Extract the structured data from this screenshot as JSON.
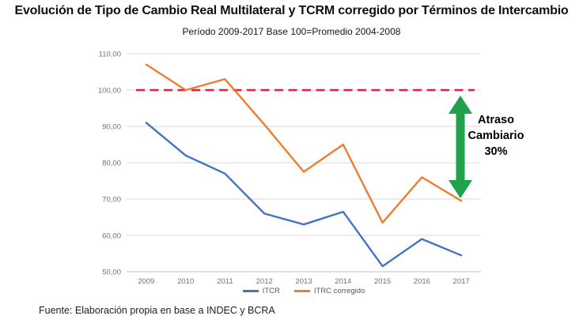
{
  "page": {
    "title": "Evolución de Tipo de Cambio Real Multilateral y TCRM corregido por Términos de Intercambio",
    "subtitle": "Período 2009-2017 Base 100=Promedio 2004-2008",
    "source": "Fuente: Elaboración propia en base a INDEC y BCRA"
  },
  "chart_data": {
    "type": "line",
    "title": "Evolución de Tipo de Cambio Real Multilateral y TCRM corregido por Términos de Intercambio",
    "subtitle": "Período 2009-2017 Base 100=Promedio 2004-2008",
    "categories": [
      "2009",
      "2010",
      "2011",
      "2012",
      "2013",
      "2014",
      "2015",
      "2016",
      "2017"
    ],
    "series": [
      {
        "name": "ITCR",
        "color": "#4472C4",
        "values": [
          91,
          82,
          77,
          66,
          63,
          66.5,
          51.5,
          59,
          54.5
        ]
      },
      {
        "name": "ITRC corregido",
        "color": "#ED7D31",
        "values": [
          107,
          100,
          103,
          90.5,
          77.5,
          85,
          63.5,
          76,
          69.5
        ]
      }
    ],
    "reference_line": {
      "value": 100,
      "color": "#ED1C40",
      "style": "dashed"
    },
    "y_ticks": [
      "110,00",
      "100,00",
      "90,00",
      "80,00",
      "70,00",
      "60,00",
      "50,00"
    ],
    "y_tick_values": [
      110,
      100,
      90,
      80,
      70,
      60,
      50
    ],
    "ylim": [
      50,
      110
    ],
    "xlabel": "",
    "ylabel": "",
    "grid": true,
    "legend_position": "bottom",
    "colors": {
      "gridline": "#D9D9D9",
      "axis_line": "#BFBFBF",
      "tick_text": "#737373",
      "legend_text": "#595959",
      "arrow_green": "#1FA24B"
    },
    "annotation": {
      "text_lines": [
        "Atraso",
        "Cambiario",
        "30%"
      ],
      "arrow": "green-double-vertical-arrow"
    }
  }
}
